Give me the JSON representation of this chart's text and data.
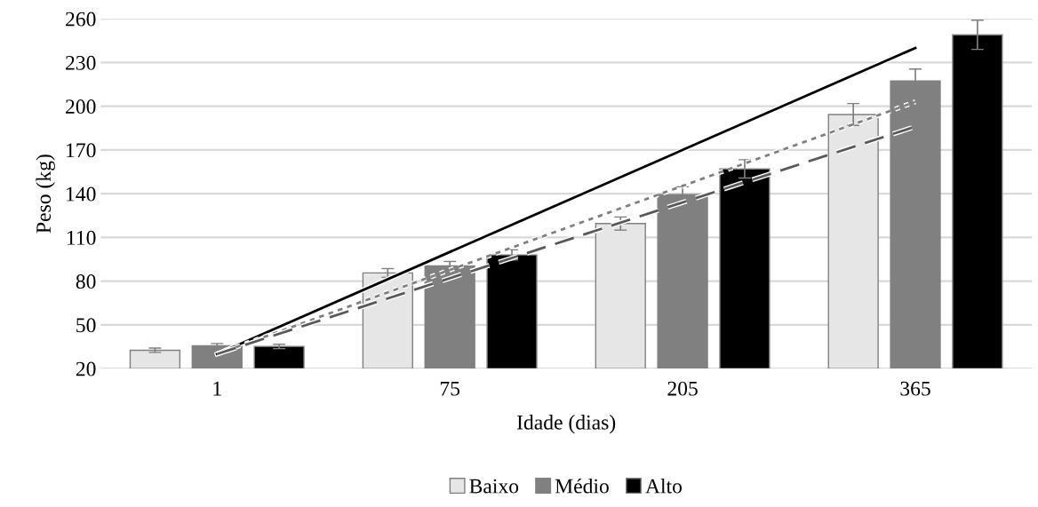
{
  "chart_data": {
    "type": "bar",
    "xlabel": "Idade (dias)",
    "ylabel": "Peso (kg)",
    "categories": [
      "1",
      "75",
      "205",
      "365"
    ],
    "series": [
      {
        "name": "Baixo",
        "color": "#e6e6e6",
        "values": [
          32.6,
          85.6,
          119.5,
          194.3
        ],
        "errors": [
          1.5,
          3,
          4.5,
          7.5
        ]
      },
      {
        "name": "Médio",
        "color": "#808080",
        "values": [
          35.7,
          90.5,
          139.4,
          217.3
        ],
        "errors": [
          1.5,
          3,
          5.3,
          8.2
        ]
      },
      {
        "name": "Alto",
        "color": "#000000",
        "values": [
          35.2,
          98,
          157,
          249
        ],
        "errors": [
          1.5,
          3.5,
          6.3,
          10
        ]
      },
      {
        "type": "line",
        "x": [
          "1",
          "365"
        ],
        "values": [
          30,
          240
        ],
        "color": "#000000",
        "line_style": "solid"
      },
      {
        "type": "line",
        "x": [
          "1",
          "365"
        ],
        "values": [
          30,
          203
        ],
        "color": "#808080",
        "line_style": "dotted"
      },
      {
        "type": "line",
        "x": [
          "1",
          "365"
        ],
        "values": [
          30,
          186
        ],
        "color": "#595959",
        "line_style": "dashed"
      }
    ],
    "ylim": [
      20,
      260
    ],
    "yticks": [
      20,
      50,
      80,
      110,
      140,
      170,
      200,
      230,
      260
    ],
    "grid": "y",
    "legend": "bottom"
  }
}
